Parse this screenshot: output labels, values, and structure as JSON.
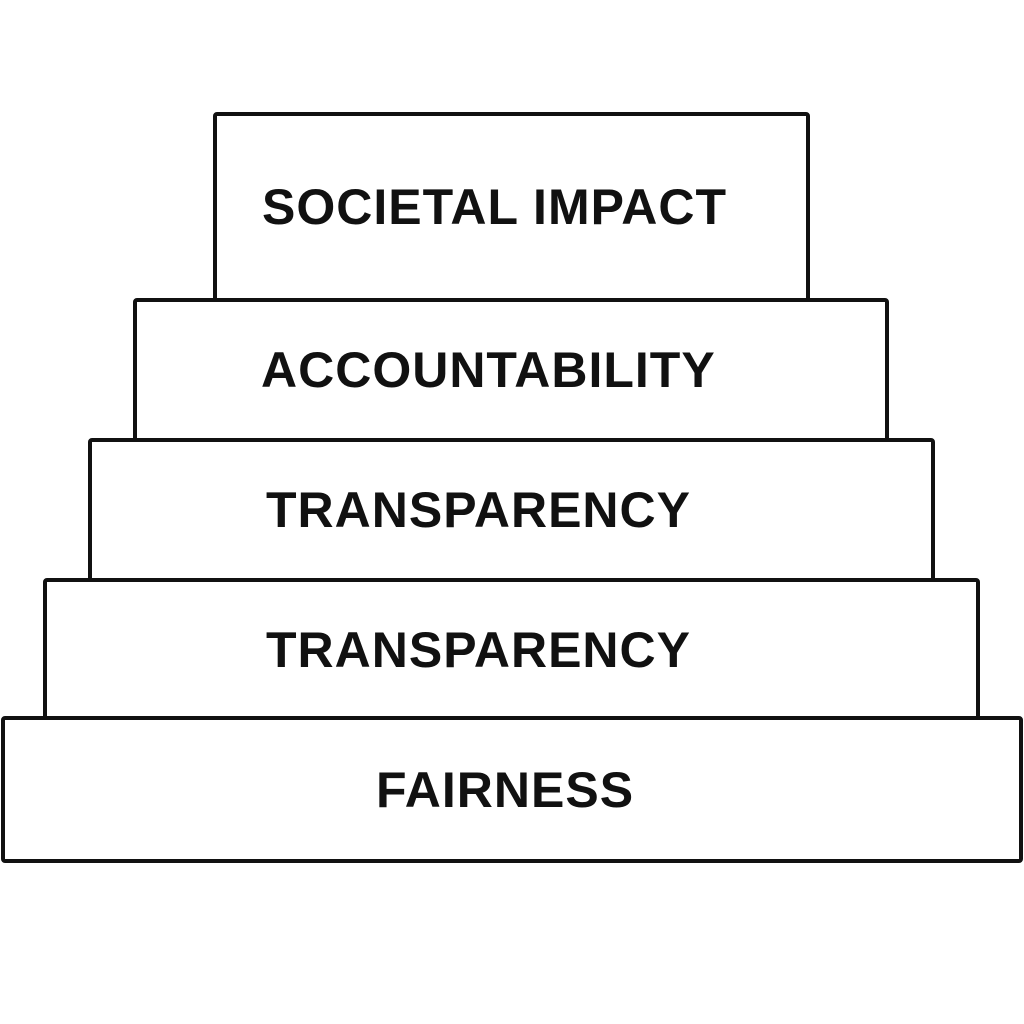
{
  "pyramid": {
    "levels": [
      {
        "label": "SOCIETAL IMPACT"
      },
      {
        "label": "ACCOUNTABILITY"
      },
      {
        "label": "TRANSPARENCY"
      },
      {
        "label": "TRANSPARENCY"
      },
      {
        "label": "FAIRNESS"
      }
    ]
  }
}
